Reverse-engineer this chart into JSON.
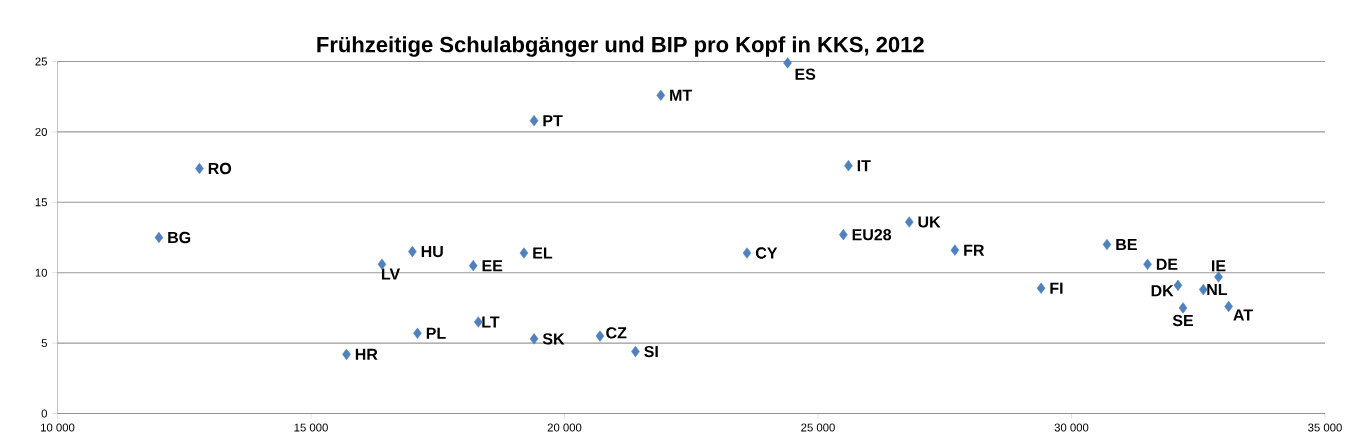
{
  "chart_data": {
    "type": "scatter",
    "title": "Frühzeitige Schulabgänger und BIP pro Kopf in KKS, 2012",
    "x": [
      12000,
      12800,
      15700,
      16400,
      17000,
      17100,
      18200,
      18300,
      19200,
      19400,
      19400,
      20700,
      21400,
      21900,
      23600,
      24400,
      25600,
      25500,
      26800,
      27700,
      29400,
      30700,
      31500,
      32100,
      32200,
      32600,
      32900,
      33100
    ],
    "series": [
      {
        "color": "#4f81bd",
        "values": [
          12.5,
          17.4,
          4.2,
          10.6,
          11.5,
          5.7,
          10.5,
          6.5,
          11.4,
          5.3,
          20.8,
          5.5,
          4.4,
          22.6,
          11.4,
          24.9,
          17.6,
          12.7,
          13.6,
          11.6,
          8.9,
          12.0,
          10.6,
          9.1,
          7.5,
          8.8,
          9.7,
          7.6
        ]
      }
    ],
    "annotations": [
      {
        "text": "BG",
        "x": 12000,
        "y": 12.5
      },
      {
        "text": "RO",
        "x": 12800,
        "y": 17.4
      },
      {
        "text": "HR",
        "x": 15700,
        "y": 4.2
      },
      {
        "text": "LV",
        "x": 16400,
        "y": 10.6
      },
      {
        "text": "HU",
        "x": 17000,
        "y": 11.5
      },
      {
        "text": "PL",
        "x": 17100,
        "y": 5.7
      },
      {
        "text": "EE",
        "x": 18200,
        "y": 10.5
      },
      {
        "text": "LT",
        "x": 18300,
        "y": 6.5
      },
      {
        "text": "EL",
        "x": 19200,
        "y": 11.4
      },
      {
        "text": "SK",
        "x": 19400,
        "y": 5.3
      },
      {
        "text": "PT",
        "x": 19400,
        "y": 20.8
      },
      {
        "text": "CZ",
        "x": 20700,
        "y": 5.5
      },
      {
        "text": "SI",
        "x": 21400,
        "y": 4.4
      },
      {
        "text": "MT",
        "x": 21900,
        "y": 22.6
      },
      {
        "text": "CY",
        "x": 23600,
        "y": 11.4
      },
      {
        "text": "ES",
        "x": 24400,
        "y": 24.9
      },
      {
        "text": "IT",
        "x": 25600,
        "y": 17.6
      },
      {
        "text": "EU28",
        "x": 25500,
        "y": 12.7
      },
      {
        "text": "UK",
        "x": 26800,
        "y": 13.6
      },
      {
        "text": "FR",
        "x": 27700,
        "y": 11.6
      },
      {
        "text": "FI",
        "x": 29400,
        "y": 8.9
      },
      {
        "text": "BE",
        "x": 30700,
        "y": 12.0
      },
      {
        "text": "DE",
        "x": 31500,
        "y": 10.6
      },
      {
        "text": "DK",
        "x": 32100,
        "y": 9.1
      },
      {
        "text": "SE",
        "x": 32200,
        "y": 7.5
      },
      {
        "text": "NL",
        "x": 32600,
        "y": 8.8
      },
      {
        "text": "IE",
        "x": 32900,
        "y": 9.7
      },
      {
        "text": "AT",
        "x": 33100,
        "y": 7.6
      }
    ],
    "xlim": [
      10000,
      35000
    ],
    "xticks": [
      {
        "value": 10000,
        "label": "10 000"
      },
      {
        "value": 15000,
        "label": "15 000"
      },
      {
        "value": 20000,
        "label": "20 000"
      },
      {
        "value": 25000,
        "label": "25 000"
      },
      {
        "value": 30000,
        "label": "30 000"
      },
      {
        "value": 35000,
        "label": "35 000"
      }
    ],
    "ylim": [
      0,
      25
    ],
    "yticks": [
      0,
      5,
      10,
      15,
      20,
      25
    ],
    "grid": "y",
    "marker": "diamond"
  }
}
